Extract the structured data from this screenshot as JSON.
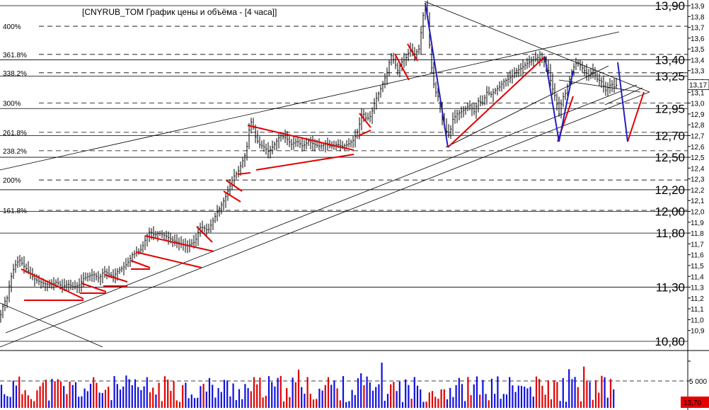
{
  "chart_data": {
    "type": "candlestick",
    "title": "[CNYRUB_TOM График цены и объёма - [4 часа]]",
    "ylim": [
      10.85,
      13.95
    ],
    "price_ticks": [
      "13,9",
      "13,8",
      "13,7",
      "13,6",
      "13,5",
      "13,4",
      "13,3",
      "13,2",
      "13,1",
      "13,0",
      "12,9",
      "12,8",
      "12,7",
      "12,6",
      "12,5",
      "12,4",
      "12,3",
      "12,2",
      "12,1",
      "12,0",
      "11,9",
      "11,8",
      "11,7",
      "11,6",
      "11,5",
      "11,4",
      "11,3",
      "11,2",
      "11,1",
      "11,0",
      "10,9"
    ],
    "price_tick_values": [
      13.9,
      13.8,
      13.7,
      13.6,
      13.5,
      13.4,
      13.3,
      13.2,
      13.1,
      13.0,
      12.9,
      12.8,
      12.7,
      12.6,
      12.5,
      12.4,
      12.3,
      12.2,
      12.1,
      12.0,
      11.9,
      11.8,
      11.7,
      11.6,
      11.5,
      11.4,
      11.3,
      11.2,
      11.1,
      11.0,
      10.9
    ],
    "current_price_label": "13,17",
    "current_price": 13.17,
    "horizontal_levels": [
      {
        "label": "13,90",
        "value": 13.9
      },
      {
        "label": "13,40",
        "value": 13.4
      },
      {
        "label": "13,25",
        "value": 13.25
      },
      {
        "label": "12,95",
        "value": 12.95
      },
      {
        "label": "12,70",
        "value": 12.7
      },
      {
        "label": "12,50",
        "value": 12.5
      },
      {
        "label": "12,20",
        "value": 12.2
      },
      {
        "label": "12,00",
        "value": 12.0
      },
      {
        "label": "11,80",
        "value": 11.8
      },
      {
        "label": "11,30",
        "value": 11.3
      },
      {
        "label": "10,80",
        "value": 10.8
      }
    ],
    "fibonacci_levels": [
      {
        "label": "400%",
        "value": 13.71
      },
      {
        "label": "361.8%",
        "value": 13.45
      },
      {
        "label": "338.2%",
        "value": 13.28
      },
      {
        "label": "300%",
        "value": 13.0
      },
      {
        "label": "261.8%",
        "value": 12.73
      },
      {
        "label": "238.2%",
        "value": 12.56
      },
      {
        "label": "200%",
        "value": 12.29
      },
      {
        "label": "161.8%",
        "value": 12.01
      }
    ],
    "price_path": [
      [
        0,
        11.02
      ],
      [
        5,
        11.15
      ],
      [
        10,
        11.2
      ],
      [
        14,
        11.35
      ],
      [
        18,
        11.45
      ],
      [
        23,
        11.52
      ],
      [
        28,
        11.55
      ],
      [
        33,
        11.5
      ],
      [
        40,
        11.45
      ],
      [
        48,
        11.38
      ],
      [
        56,
        11.35
      ],
      [
        64,
        11.33
      ],
      [
        72,
        11.32
      ],
      [
        80,
        11.35
      ],
      [
        88,
        11.3
      ],
      [
        96,
        11.33
      ],
      [
        104,
        11.3
      ],
      [
        112,
        11.32
      ],
      [
        118,
        11.38
      ],
      [
        125,
        11.4
      ],
      [
        132,
        11.42
      ],
      [
        140,
        11.38
      ],
      [
        147,
        11.45
      ],
      [
        154,
        11.42
      ],
      [
        160,
        11.4
      ],
      [
        167,
        11.45
      ],
      [
        174,
        11.48
      ],
      [
        180,
        11.52
      ],
      [
        187,
        11.6
      ],
      [
        194,
        11.62
      ],
      [
        200,
        11.65
      ],
      [
        206,
        11.75
      ],
      [
        212,
        11.82
      ],
      [
        218,
        11.78
      ],
      [
        225,
        11.8
      ],
      [
        232,
        11.78
      ],
      [
        240,
        11.75
      ],
      [
        248,
        11.72
      ],
      [
        256,
        11.7
      ],
      [
        264,
        11.68
      ],
      [
        270,
        11.7
      ],
      [
        276,
        11.72
      ],
      [
        282,
        11.85
      ],
      [
        288,
        11.85
      ],
      [
        294,
        11.82
      ],
      [
        300,
        11.9
      ],
      [
        306,
        11.98
      ],
      [
        312,
        12.05
      ],
      [
        318,
        12.12
      ],
      [
        324,
        12.22
      ],
      [
        330,
        12.32
      ],
      [
        336,
        12.36
      ],
      [
        342,
        12.45
      ],
      [
        348,
        12.55
      ],
      [
        352,
        12.75
      ],
      [
        356,
        12.85
      ],
      [
        360,
        12.7
      ],
      [
        366,
        12.62
      ],
      [
        372,
        12.6
      ],
      [
        380,
        12.55
      ],
      [
        388,
        12.62
      ],
      [
        396,
        12.7
      ],
      [
        404,
        12.68
      ],
      [
        412,
        12.62
      ],
      [
        420,
        12.65
      ],
      [
        428,
        12.6
      ],
      [
        436,
        12.65
      ],
      [
        444,
        12.62
      ],
      [
        452,
        12.6
      ],
      [
        460,
        12.62
      ],
      [
        468,
        12.6
      ],
      [
        476,
        12.62
      ],
      [
        484,
        12.6
      ],
      [
        492,
        12.62
      ],
      [
        500,
        12.66
      ],
      [
        506,
        12.75
      ],
      [
        512,
        12.92
      ],
      [
        518,
        12.85
      ],
      [
        524,
        12.88
      ],
      [
        530,
        13.02
      ],
      [
        536,
        13.1
      ],
      [
        542,
        13.2
      ],
      [
        548,
        13.3
      ],
      [
        552,
        13.45
      ],
      [
        556,
        13.4
      ],
      [
        562,
        13.3
      ],
      [
        568,
        13.38
      ],
      [
        574,
        13.42
      ],
      [
        580,
        13.5
      ],
      [
        586,
        13.45
      ],
      [
        592,
        13.5
      ],
      [
        596,
        13.7
      ],
      [
        600,
        13.92
      ],
      [
        604,
        13.8
      ],
      [
        608,
        13.45
      ],
      [
        612,
        13.2
      ],
      [
        616,
        13.1
      ],
      [
        620,
        13.05
      ],
      [
        625,
        12.85
      ],
      [
        630,
        12.75
      ],
      [
        635,
        12.7
      ],
      [
        640,
        12.85
      ],
      [
        646,
        12.9
      ],
      [
        652,
        12.92
      ],
      [
        658,
        12.95
      ],
      [
        664,
        12.98
      ],
      [
        670,
        12.92
      ],
      [
        676,
        13.02
      ],
      [
        682,
        13.0
      ],
      [
        688,
        13.1
      ],
      [
        694,
        13.08
      ],
      [
        700,
        13.12
      ],
      [
        706,
        13.15
      ],
      [
        712,
        13.2
      ],
      [
        718,
        13.22
      ],
      [
        724,
        13.25
      ],
      [
        730,
        13.3
      ],
      [
        736,
        13.32
      ],
      [
        742,
        13.35
      ],
      [
        748,
        13.38
      ],
      [
        754,
        13.4
      ],
      [
        760,
        13.42
      ],
      [
        766,
        13.4
      ],
      [
        770,
        13.38
      ],
      [
        775,
        13.3
      ],
      [
        780,
        13.15
      ],
      [
        785,
        13.05
      ],
      [
        790,
        12.9
      ],
      [
        795,
        13.05
      ],
      [
        800,
        13.1
      ],
      [
        804,
        13.2
      ],
      [
        808,
        13.28
      ],
      [
        812,
        13.35
      ],
      [
        816,
        13.38
      ],
      [
        820,
        13.35
      ],
      [
        826,
        13.3
      ],
      [
        832,
        13.25
      ],
      [
        838,
        13.3
      ],
      [
        844,
        13.22
      ],
      [
        850,
        13.2
      ],
      [
        856,
        13.12
      ],
      [
        860,
        13.15
      ],
      [
        864,
        13.18
      ],
      [
        868,
        13.15
      ],
      [
        872,
        13.17
      ]
    ],
    "volume_label": "5 000",
    "volume_current_label": "13,70"
  }
}
